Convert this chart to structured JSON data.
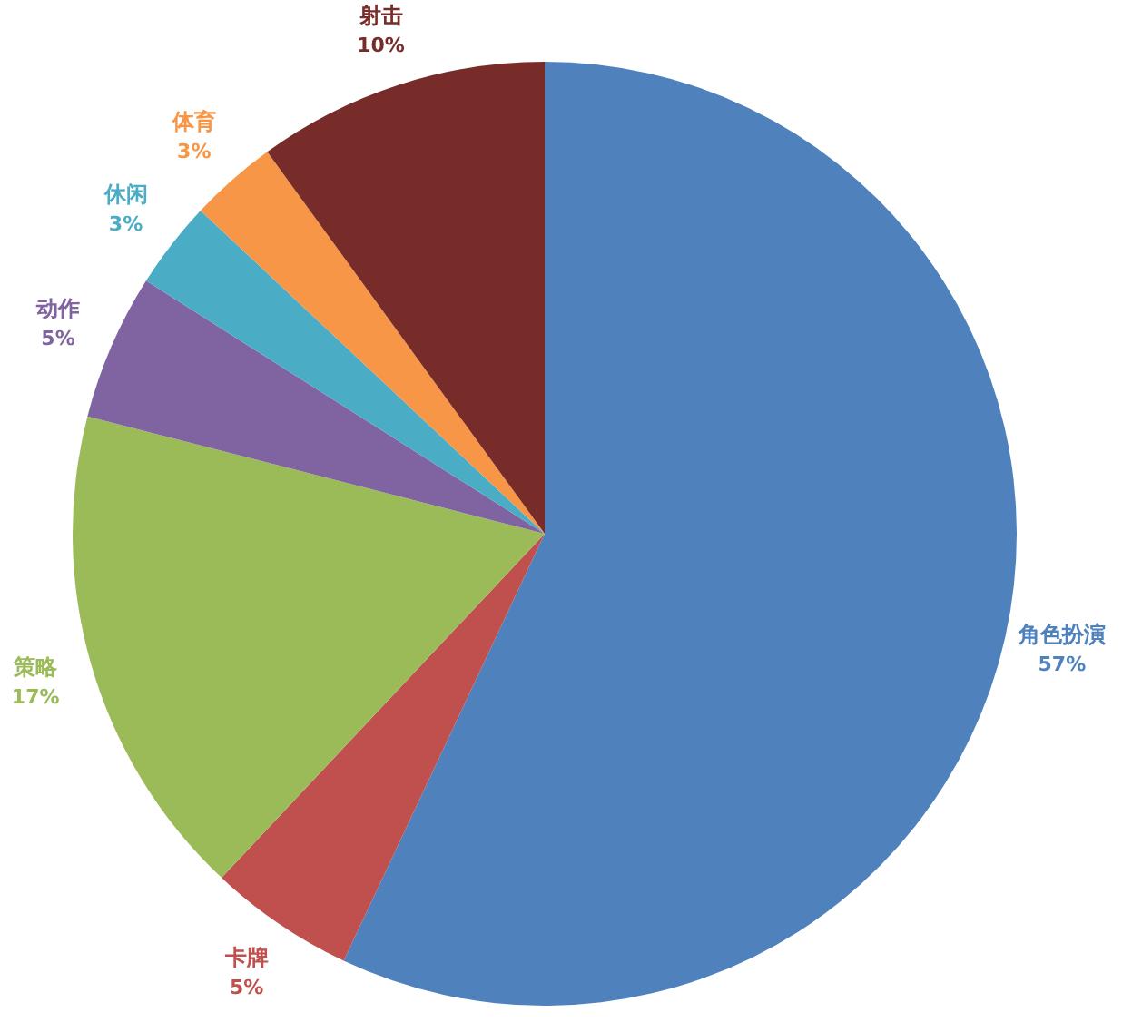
{
  "chart_data": {
    "type": "pie",
    "categories": [
      "角色扮演",
      "卡牌",
      "策略",
      "动作",
      "休闲",
      "体育",
      "射击"
    ],
    "values": [
      57,
      5,
      17,
      5,
      3,
      3,
      10
    ],
    "colors": [
      "#4f81bd",
      "#c0504d",
      "#9bbb59",
      "#8064a2",
      "#4bacc6",
      "#f79646",
      "#772c2a"
    ],
    "value_labels": [
      "57%",
      "5%",
      "17%",
      "5%",
      "3%",
      "3%",
      "10%"
    ]
  }
}
